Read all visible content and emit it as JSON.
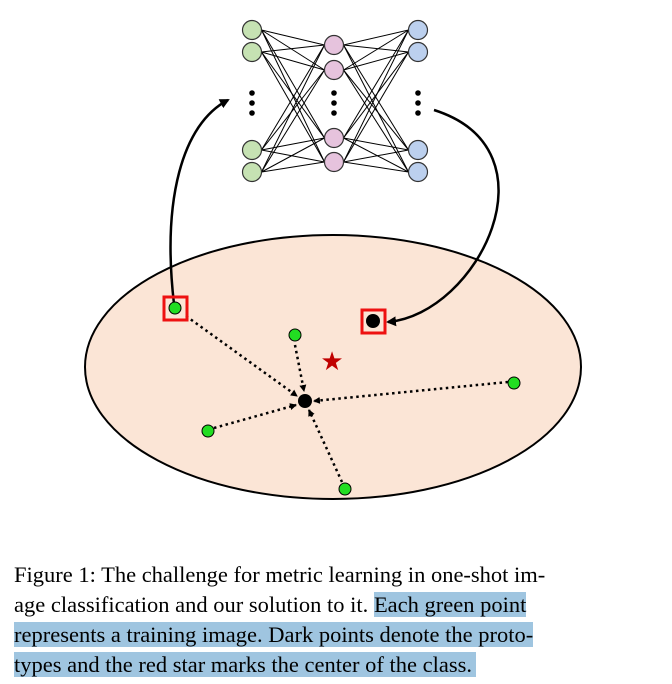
{
  "caption": {
    "line1": "Figure 1: The challenge for metric learning in one-shot im-",
    "line2_plain": "age classification and our solution to it. ",
    "line2_highlight": "Each green point",
    "line3": "represents a training image. Dark points denote the proto-",
    "line4": "types and the red star marks the center of the class."
  },
  "colors": {
    "ellipse_fill": "#fbe5d6",
    "green_point": "#22dd22",
    "dark_point": "#000000",
    "star": "#c00000",
    "highlight_box": "#ee1111",
    "input_node": "#c6e2b3",
    "hidden_node": "#e6c3dd",
    "output_node": "#bcd0ee",
    "caption_highlight": "#9fc5e0"
  }
}
